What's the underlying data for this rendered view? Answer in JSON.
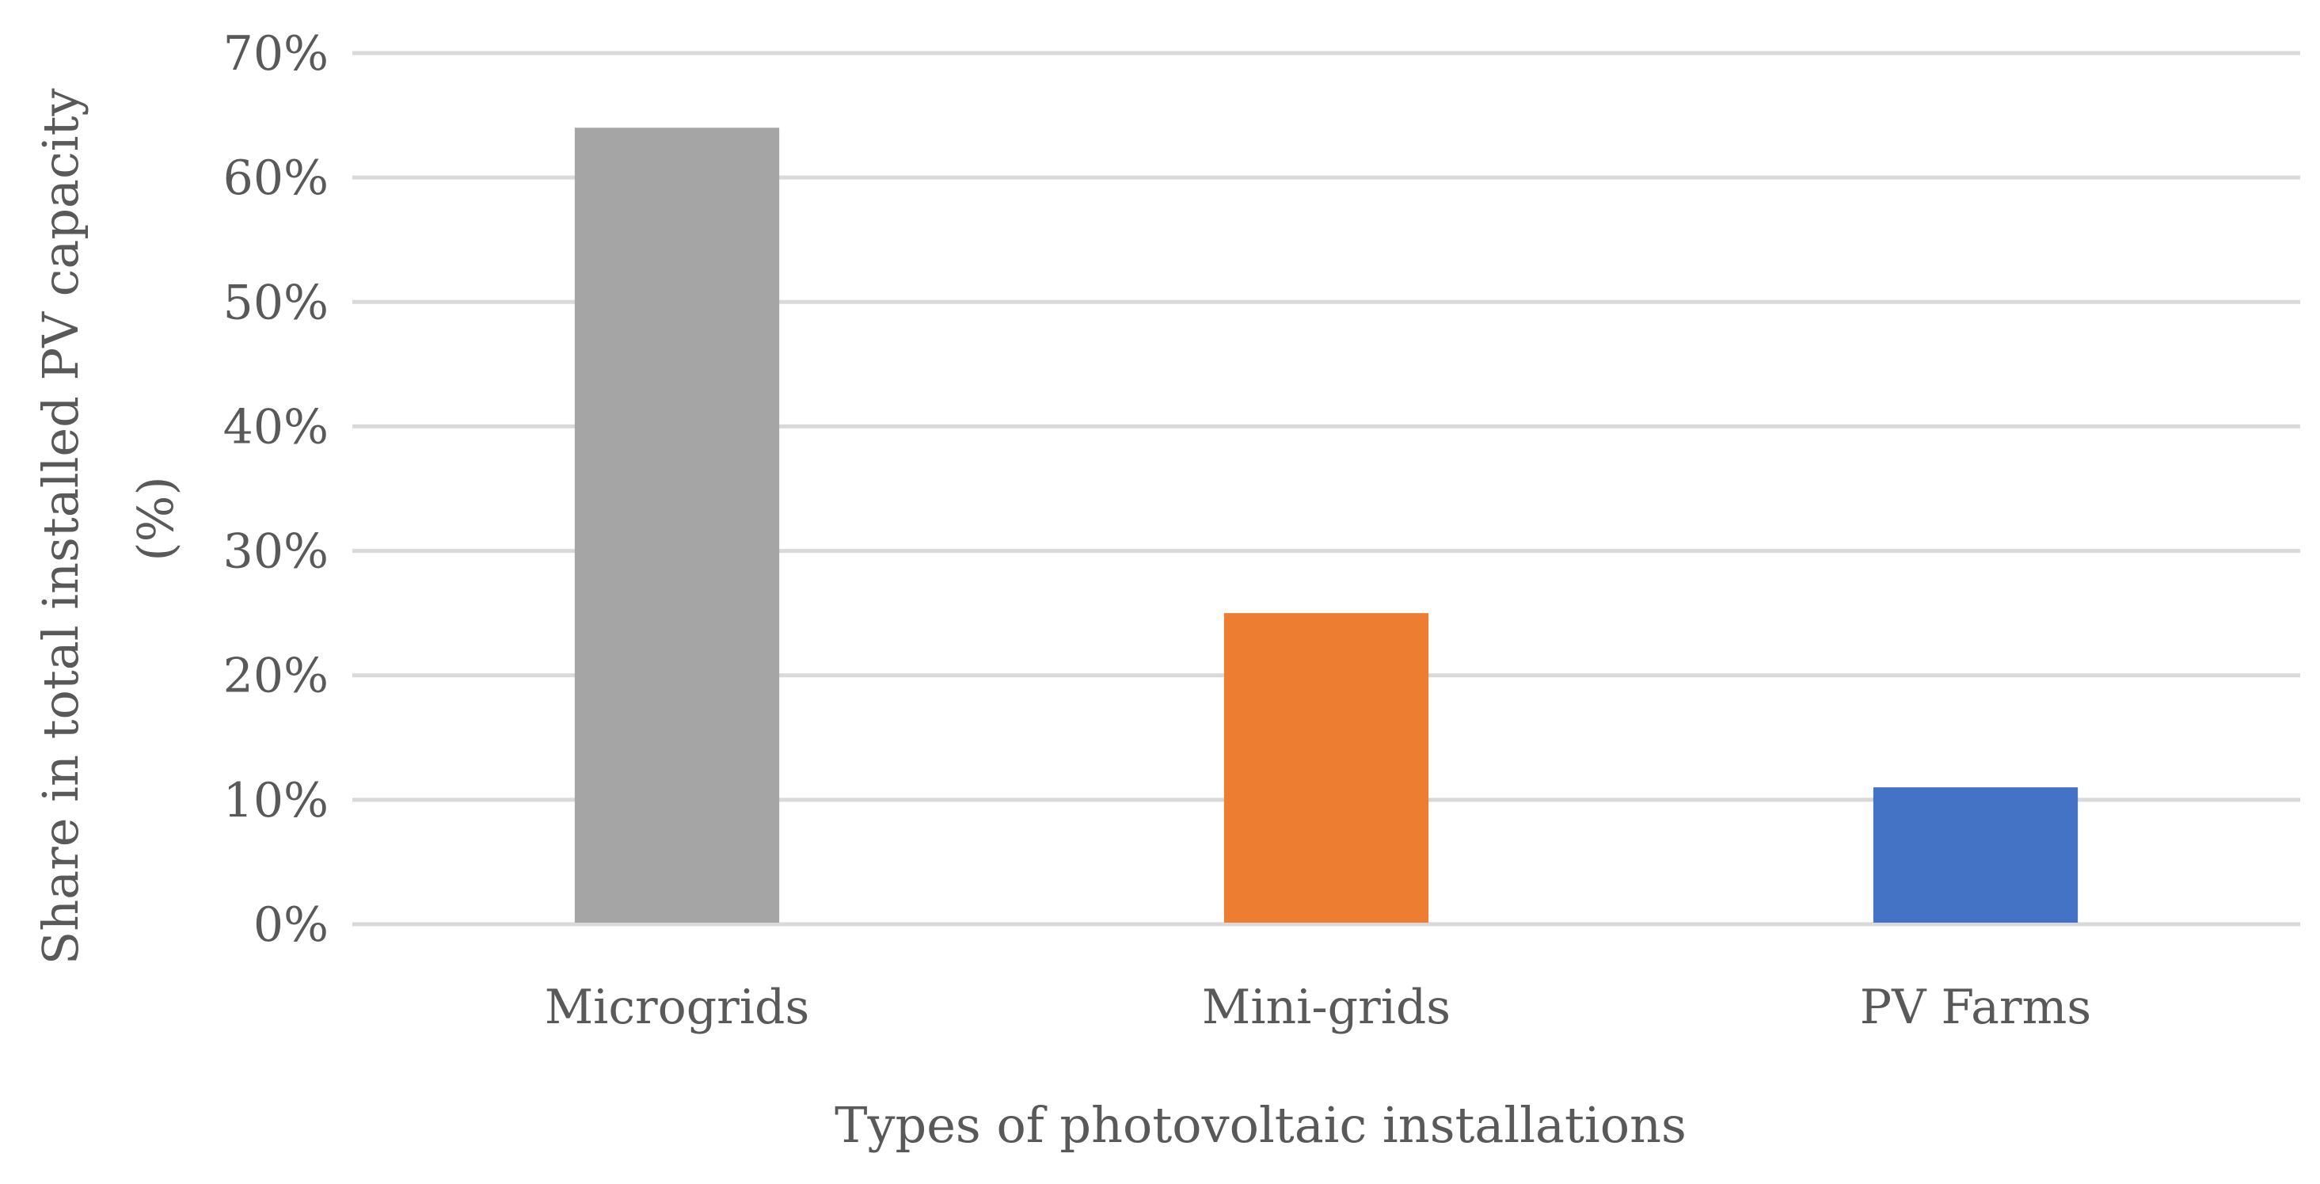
{
  "chart_data": {
    "type": "bar",
    "title": "",
    "xlabel": "Types of photovoltaic installations",
    "ylabel_lines": [
      "Share in total installed PV capacity",
      "(%)"
    ],
    "categories": [
      "Microgrids",
      "Mini-grids",
      "PV Farms"
    ],
    "values": [
      64,
      25,
      11
    ],
    "value_unit": "%",
    "bar_colors": [
      "#a5a5a5",
      "#ed7d31",
      "#4472c4"
    ],
    "ylim": [
      0,
      70
    ],
    "yticks": [
      0,
      10,
      20,
      30,
      40,
      50,
      60,
      70
    ],
    "ytick_labels": [
      "0%",
      "10%",
      "20%",
      "30%",
      "40%",
      "50%",
      "60%",
      "70%"
    ],
    "grid": true,
    "legend": "none"
  }
}
